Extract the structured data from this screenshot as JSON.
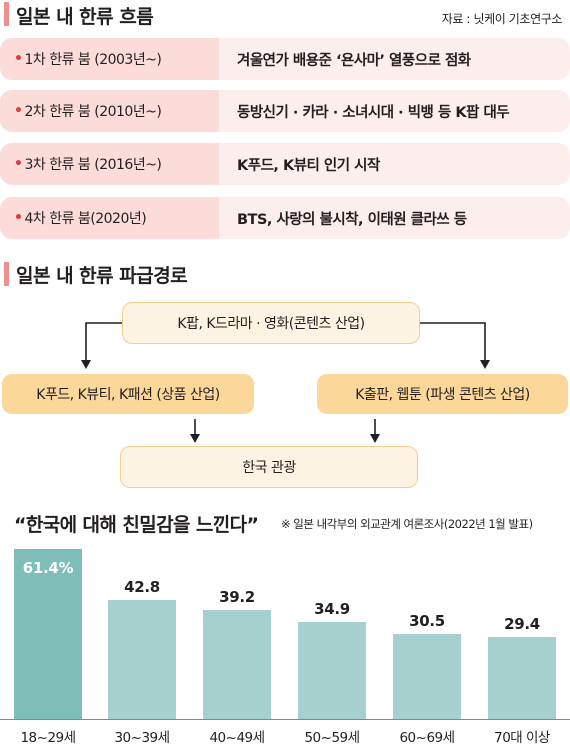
{
  "section1": {
    "title": "일본 내 한류 흐름",
    "source": "자료 : 닛케이 기초연구소"
  },
  "waves": [
    {
      "label": "1차 한류 붐 (2003년~)",
      "desc": "겨울연가 배용준 ‘욘사마’ 열풍으로 점화"
    },
    {
      "label": "2차 한류 붐 (2010년~)",
      "desc": "동방신기 · 카라 · 소녀시대 · 빅뱅 등 K팝 대두"
    },
    {
      "label": "3차 한류 붐 (2016년~)",
      "desc": "K푸드, K뷰티 인기 시작"
    },
    {
      "label": "4차 한류 붐(2020년)",
      "desc": "BTS, 사랑의 불시착, 이태원 클라쓰 등"
    }
  ],
  "section2": {
    "title": "일본 내 한류 파급경로",
    "content": "K팝, K드라마 · 영화(콘텐츠 산업)",
    "industry": "K푸드, K뷰티, K패션 (상품 산업)",
    "derived": "K출판, 웹툰 (파생 콘텐츠 산업)",
    "tourism": "한국 관광"
  },
  "colors": {
    "accent": "#f08f8f",
    "bullet": "#e0393e",
    "bar": "#a5d0cd",
    "bar_highlight": "#7fbdb9",
    "box": "#fbd79a"
  },
  "chart_data": {
    "type": "bar",
    "title": "“한국에 대해 친밀감을 느낀다”",
    "note": "※ 일본 내각부의 외교관계 여론조사(2022년 1월 발표)",
    "categories": [
      "18~29세",
      "30~39세",
      "40~49세",
      "50~59세",
      "60~69세",
      "70대 이상"
    ],
    "values": [
      61.4,
      42.8,
      39.2,
      34.9,
      30.5,
      29.4
    ],
    "labels": [
      "61.4%",
      "42.8",
      "39.2",
      "34.9",
      "30.5",
      "29.4"
    ],
    "ylim": [
      0,
      62
    ]
  }
}
